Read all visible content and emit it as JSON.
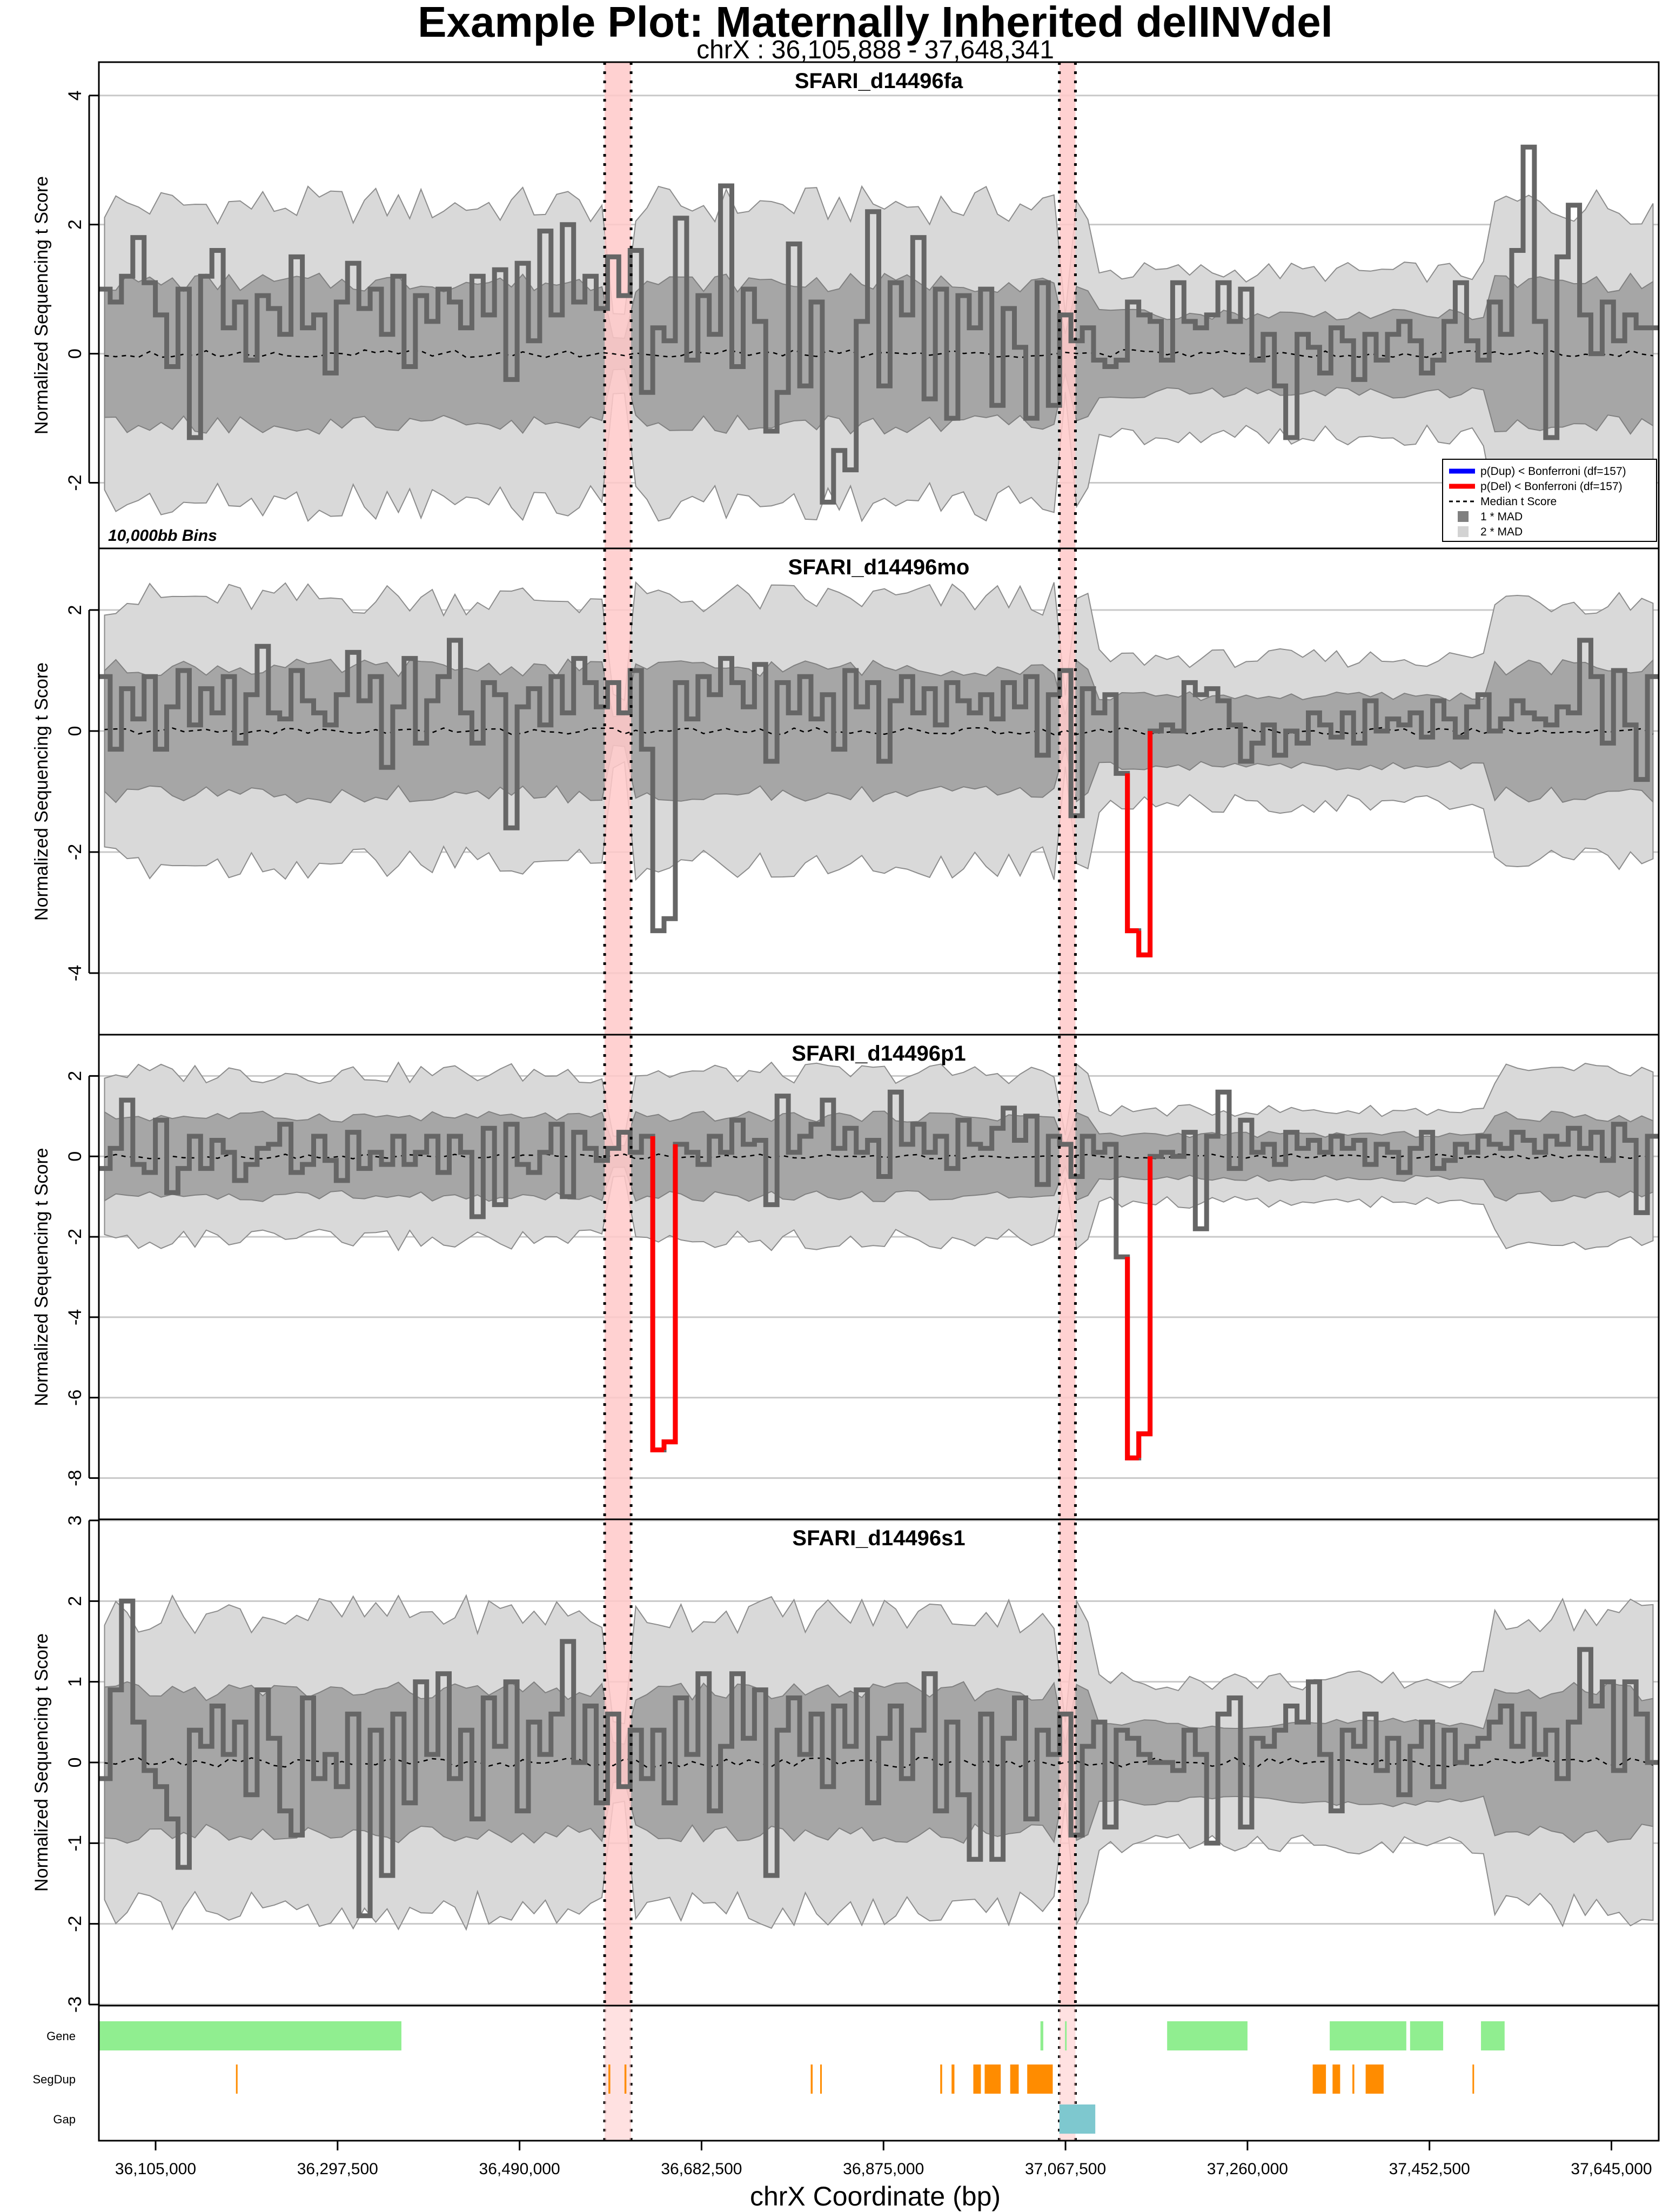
{
  "chart_data": {
    "type": "line",
    "title": "Example Plot: Maternally Inherited delINVdel",
    "subtitle": "chrX : 36,105,888 - 37,648,341",
    "xlabel": "chrX Coordinate (bp)",
    "ylabel": "Normalized Sequencing t Score",
    "bin_note": "10,000bb Bins",
    "xlim": [
      36045000,
      37695000
    ],
    "x_ticks": [
      36105000,
      36297500,
      36490000,
      36682500,
      36875000,
      37067500,
      37260000,
      37452500,
      37645000
    ],
    "x_tick_labels": [
      "36,105,000",
      "36,297,500",
      "36,490,000",
      "36,682,500",
      "36,875,000",
      "37,067,500",
      "37,260,000",
      "37,452,500",
      "37,645,000"
    ],
    "highlight_regions": [
      [
        36580000,
        36608000
      ],
      [
        37061000,
        37078000
      ]
    ],
    "colors": {
      "signal": "#666666",
      "deletion": "#ff0000",
      "duplication": "#0000ff",
      "mad1": "#a6a6a6",
      "mad2": "#d9d9d9",
      "highlight": "#ffc9c9",
      "gene": "#90ee90",
      "segdup": "#ff8c00",
      "gap": "#7ec8cf"
    },
    "legend": {
      "placement": "right",
      "entries": [
        "p(Dup) < Bonferroni (df=157)",
        "p(Del) < Bonferroni (df=157)",
        "Median t Score",
        "1 * MAD",
        "2 * MAD"
      ]
    },
    "panels": [
      {
        "name": "SFARI_d14496fa",
        "ylim": [
          -3.0,
          4.5
        ],
        "yticks": [
          -2,
          0,
          2,
          4
        ],
        "show_legend": true,
        "show_bins_note": true,
        "values": [
          1.0,
          0.8,
          1.2,
          1.8,
          1.1,
          0.6,
          -0.2,
          1.0,
          -1.3,
          1.2,
          1.6,
          0.4,
          0.8,
          -0.1,
          0.9,
          0.7,
          0.3,
          1.5,
          0.4,
          0.6,
          -0.3,
          0.8,
          1.4,
          0.7,
          1.0,
          0.3,
          1.2,
          -0.2,
          0.9,
          0.5,
          1.0,
          0.8,
          0.4,
          1.2,
          0.6,
          1.3,
          -0.4,
          1.4,
          0.2,
          1.9,
          0.6,
          2.0,
          0.8,
          1.2,
          0.7,
          1.5,
          0.9,
          1.6,
          -0.6,
          0.4,
          0.2,
          2.1,
          -0.1,
          0.9,
          0.3,
          2.6,
          -0.2,
          1.0,
          0.5,
          -1.2,
          -0.6,
          1.7,
          -0.5,
          0.8,
          -2.3,
          -1.5,
          -1.8,
          0.5,
          2.2,
          -0.5,
          1.1,
          0.6,
          1.8,
          -0.7,
          1.0,
          -1.0,
          0.9,
          0.4,
          1.0,
          -0.8,
          0.7,
          0.1,
          -1.0,
          1.1,
          -0.8,
          0.6,
          0.2,
          0.4,
          -0.1,
          -0.2,
          -0.1,
          0.8,
          0.6,
          0.5,
          -0.1,
          1.1,
          0.5,
          0.4,
          0.6,
          1.1,
          0.5,
          1.0,
          -0.1,
          0.3,
          -0.5,
          -1.3,
          0.3,
          0.1,
          -0.3,
          0.4,
          0.2,
          -0.4,
          0.3,
          -0.1,
          0.3,
          0.5,
          0.2,
          -0.3,
          -0.1,
          0.5,
          1.1,
          0.2,
          -0.1,
          0.8,
          0.3,
          1.6,
          3.2,
          0.5,
          -1.3,
          1.5,
          2.3,
          0.6,
          0.0,
          0.8,
          0.2,
          0.6,
          0.4,
          0.4
        ],
        "del_flags": []
      },
      {
        "name": "SFARI_d14496mo",
        "ylim": [
          -5.0,
          3.0
        ],
        "yticks": [
          -4,
          -2,
          0,
          2
        ],
        "show_legend": false,
        "show_bins_note": false,
        "values": [
          0.9,
          -0.3,
          0.7,
          0.2,
          0.9,
          -0.3,
          0.4,
          1.0,
          0.1,
          0.7,
          0.3,
          0.9,
          -0.2,
          0.6,
          1.4,
          0.3,
          0.2,
          1.0,
          0.5,
          0.3,
          0.1,
          0.6,
          1.3,
          0.5,
          0.9,
          -0.6,
          0.4,
          1.2,
          -0.2,
          0.5,
          0.9,
          1.5,
          0.3,
          -0.2,
          0.8,
          0.6,
          -1.6,
          0.4,
          0.7,
          0.1,
          0.9,
          0.3,
          1.2,
          0.8,
          0.4,
          0.8,
          0.3,
          1.0,
          -0.3,
          -3.3,
          -3.1,
          0.8,
          0.2,
          0.9,
          0.6,
          1.2,
          0.8,
          0.4,
          1.1,
          -0.5,
          0.8,
          0.3,
          0.9,
          0.2,
          0.6,
          -0.3,
          1.0,
          0.4,
          0.8,
          -0.5,
          0.5,
          0.9,
          0.3,
          0.7,
          0.1,
          0.8,
          0.5,
          0.3,
          0.6,
          0.2,
          0.8,
          0.4,
          0.9,
          -0.4,
          0.6,
          1.0,
          -1.4,
          0.7,
          0.3,
          0.6,
          -0.7,
          -3.3,
          -3.7,
          0.0,
          0.1,
          0.0,
          0.8,
          0.6,
          0.7,
          0.5,
          0.1,
          -0.5,
          -0.2,
          0.1,
          -0.4,
          0.0,
          -0.2,
          0.3,
          0.1,
          -0.1,
          0.3,
          -0.2,
          0.5,
          0.0,
          0.2,
          0.1,
          0.3,
          -0.1,
          0.5,
          0.2,
          -0.1,
          0.4,
          0.6,
          0.0,
          0.2,
          0.5,
          0.3,
          0.2,
          0.1,
          0.4,
          0.3,
          1.5,
          0.9,
          -0.2,
          1.0,
          0.1,
          -0.8,
          0.9,
          0.4,
          -0.8
        ],
        "del_flags": [
          91,
          92
        ]
      },
      {
        "name": "SFARI_d14496p1",
        "ylim": [
          -9.0,
          3.0
        ],
        "yticks": [
          -8,
          -6,
          -4,
          -2,
          0,
          2
        ],
        "show_legend": false,
        "show_bins_note": false,
        "values": [
          -0.3,
          0.2,
          1.4,
          -0.2,
          -0.4,
          0.9,
          -0.9,
          -0.3,
          0.5,
          -0.3,
          0.4,
          0.1,
          -0.6,
          -0.2,
          0.2,
          0.3,
          0.8,
          -0.4,
          -0.2,
          0.5,
          -0.1,
          -0.6,
          0.6,
          -0.3,
          0.1,
          -0.2,
          0.5,
          -0.2,
          0.1,
          0.5,
          -0.4,
          0.5,
          0.1,
          -1.5,
          0.7,
          -1.2,
          0.8,
          -0.2,
          -0.4,
          0.1,
          0.8,
          -1.0,
          0.6,
          0.2,
          -0.1,
          0.2,
          0.6,
          0.1,
          0.5,
          -7.3,
          -7.1,
          0.3,
          0.1,
          -0.2,
          0.5,
          0.1,
          0.9,
          0.3,
          0.4,
          -1.2,
          1.5,
          0.1,
          0.5,
          0.8,
          1.4,
          0.2,
          0.7,
          0.1,
          0.4,
          -0.5,
          1.6,
          0.3,
          0.8,
          0.1,
          0.5,
          -0.3,
          0.9,
          0.3,
          0.2,
          0.7,
          1.2,
          0.4,
          1.0,
          -0.7,
          0.5,
          0.3,
          -0.5,
          0.5,
          0.1,
          0.3,
          -2.5,
          -7.5,
          -6.9,
          0.0,
          0.1,
          0.0,
          0.6,
          -1.8,
          0.5,
          1.6,
          -0.3,
          0.9,
          0.1,
          0.3,
          -0.2,
          0.6,
          0.2,
          0.4,
          0.1,
          0.5,
          0.2,
          0.4,
          -0.2,
          0.3,
          0.1,
          -0.4,
          0.2,
          0.6,
          -0.3,
          -0.1,
          0.3,
          0.1,
          0.5,
          0.3,
          0.2,
          0.6,
          0.4,
          0.1,
          0.5,
          0.3,
          0.7,
          0.2,
          0.6,
          -0.1,
          0.8,
          0.4,
          -1.4,
          0.5,
          0.2,
          0.4,
          0.0,
          0.9,
          0.3,
          -0.2
        ],
        "del_flags": [
          49,
          50,
          91,
          92
        ]
      },
      {
        "name": "SFARI_d14496s1",
        "ylim": [
          -3.0,
          3.0
        ],
        "yticks": [
          -3,
          -2,
          -1,
          0,
          1,
          2,
          3
        ],
        "show_legend": false,
        "show_bins_note": false,
        "values": [
          -0.2,
          0.9,
          2.0,
          0.5,
          -0.1,
          -0.3,
          -0.7,
          -1.3,
          0.4,
          0.2,
          0.7,
          0.1,
          0.5,
          -0.4,
          0.9,
          0.3,
          -0.6,
          -0.9,
          0.8,
          -0.2,
          0.1,
          -0.3,
          0.6,
          -1.9,
          0.4,
          -1.4,
          0.6,
          -0.5,
          1.0,
          0.1,
          1.1,
          -0.2,
          0.4,
          -0.7,
          0.8,
          0.2,
          1.0,
          -0.6,
          0.5,
          0.1,
          0.6,
          1.5,
          0.0,
          0.7,
          -0.5,
          0.6,
          -0.3,
          0.4,
          -0.2,
          0.4,
          -0.5,
          0.8,
          0.1,
          1.1,
          -0.6,
          0.2,
          1.1,
          0.3,
          0.9,
          -1.4,
          0.4,
          0.8,
          0.1,
          0.6,
          -0.3,
          0.7,
          0.2,
          0.9,
          -0.5,
          0.3,
          0.7,
          -0.2,
          0.4,
          1.1,
          -0.6,
          0.5,
          -0.4,
          -1.2,
          0.6,
          -1.2,
          0.3,
          0.8,
          -0.7,
          0.4,
          0.1,
          0.6,
          -0.9,
          0.2,
          0.5,
          -0.8,
          0.4,
          0.3,
          0.1,
          0.0,
          0.0,
          -0.1,
          0.4,
          0.1,
          -1.0,
          0.6,
          0.8,
          -0.8,
          0.3,
          0.2,
          0.4,
          0.7,
          0.5,
          1.0,
          0.1,
          -0.6,
          0.4,
          0.2,
          0.6,
          -0.1,
          0.3,
          -0.4,
          0.2,
          0.5,
          -0.3,
          0.4,
          0.0,
          0.2,
          0.3,
          0.5,
          0.7,
          0.2,
          0.6,
          0.1,
          0.4,
          -0.2,
          0.5,
          1.4,
          0.7,
          1.0,
          -0.1,
          1.0,
          0.6,
          0.0,
          1.2,
          0.8,
          -0.1,
          1.3,
          0.5,
          1.2
        ],
        "del_flags": []
      }
    ],
    "tracks": [
      {
        "name": "Gene",
        "color": "#90ee90",
        "intervals": [
          [
            36045000,
            36365000
          ],
          [
            37041000,
            37044000
          ],
          [
            37067000,
            37068000
          ],
          [
            37175000,
            37260000
          ],
          [
            37347000,
            37428000
          ],
          [
            37432000,
            37467000
          ],
          [
            37507000,
            37532000
          ]
        ]
      },
      {
        "name": "SegDup",
        "color": "#ff8c00",
        "intervals": [
          [
            36190000,
            36191500
          ],
          [
            36584000,
            36586000
          ],
          [
            36601000,
            36603000
          ],
          [
            36798000,
            36800000
          ],
          [
            36808000,
            36809500
          ],
          [
            36935000,
            36937000
          ],
          [
            36947000,
            36950000
          ],
          [
            36970000,
            36978000
          ],
          [
            36982000,
            36999000
          ],
          [
            37009000,
            37018000
          ],
          [
            37027000,
            37054000
          ],
          [
            37329000,
            37343000
          ],
          [
            37350000,
            37358000
          ],
          [
            37371000,
            37373000
          ],
          [
            37385000,
            37404000
          ],
          [
            37498000,
            37499500
          ]
        ]
      },
      {
        "name": "Gap",
        "color": "#7ec8cf",
        "intervals": [
          [
            37061000,
            37099000
          ]
        ]
      }
    ]
  }
}
